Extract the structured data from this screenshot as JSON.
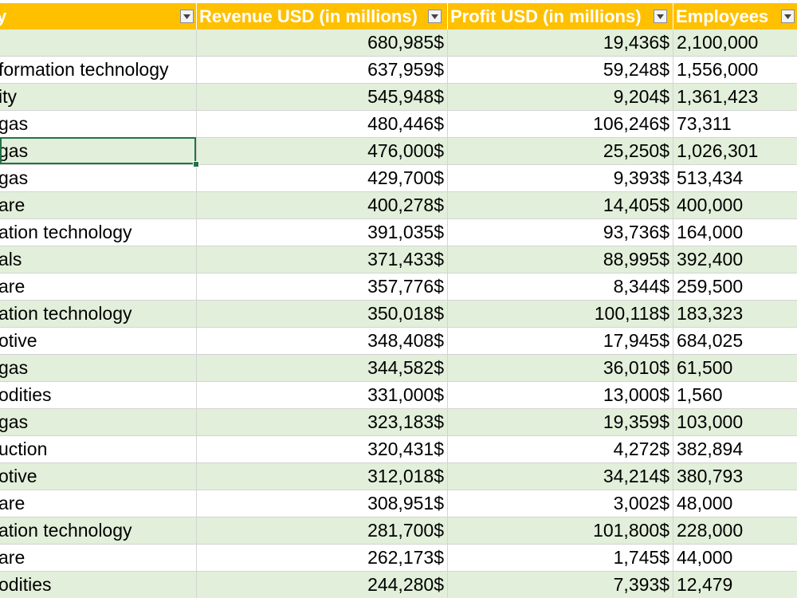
{
  "header": {
    "industry": "y",
    "revenue": "Revenue USD (in millions)",
    "profit": "Profit USD (in millions)",
    "employees": "Employees"
  },
  "rows": [
    {
      "industry": "",
      "revenue": "680,985$",
      "profit": "19,436$",
      "employees": "2,100,000"
    },
    {
      "industry": "formation technology",
      "revenue": "637,959$",
      "profit": "59,248$",
      "employees": "1,556,000"
    },
    {
      "industry": "ity",
      "revenue": "545,948$",
      "profit": "9,204$",
      "employees": "1,361,423"
    },
    {
      "industry": "gas",
      "revenue": "480,446$",
      "profit": "106,246$",
      "employees": "73,311"
    },
    {
      "industry": "gas",
      "revenue": "476,000$",
      "profit": "25,250$",
      "employees": "1,026,301"
    },
    {
      "industry": "gas",
      "revenue": "429,700$",
      "profit": "9,393$",
      "employees": "513,434"
    },
    {
      "industry": "are",
      "revenue": "400,278$",
      "profit": "14,405$",
      "employees": "400,000"
    },
    {
      "industry": "ation technology",
      "revenue": "391,035$",
      "profit": "93,736$",
      "employees": "164,000"
    },
    {
      "industry": "als",
      "revenue": "371,433$",
      "profit": "88,995$",
      "employees": "392,400"
    },
    {
      "industry": "are",
      "revenue": "357,776$",
      "profit": "8,344$",
      "employees": "259,500"
    },
    {
      "industry": "ation technology",
      "revenue": "350,018$",
      "profit": "100,118$",
      "employees": "183,323"
    },
    {
      "industry": "otive",
      "revenue": "348,408$",
      "profit": "17,945$",
      "employees": "684,025"
    },
    {
      "industry": "gas",
      "revenue": "344,582$",
      "profit": "36,010$",
      "employees": "61,500"
    },
    {
      "industry": "odities",
      "revenue": "331,000$",
      "profit": "13,000$",
      "employees": "1,560"
    },
    {
      "industry": "gas",
      "revenue": "323,183$",
      "profit": "19,359$",
      "employees": "103,000"
    },
    {
      "industry": "uction",
      "revenue": "320,431$",
      "profit": "4,272$",
      "employees": "382,894"
    },
    {
      "industry": "otive",
      "revenue": "312,018$",
      "profit": "34,214$",
      "employees": "380,793"
    },
    {
      "industry": "are",
      "revenue": "308,951$",
      "profit": "3,002$",
      "employees": "48,000"
    },
    {
      "industry": "ation technology",
      "revenue": "281,700$",
      "profit": "101,800$",
      "employees": "228,000"
    },
    {
      "industry": "are",
      "revenue": "262,173$",
      "profit": "1,745$",
      "employees": "44,000"
    },
    {
      "industry": "odities",
      "revenue": "244,280$",
      "profit": "7,393$",
      "employees": "12,479"
    }
  ],
  "colors": {
    "header_bg": "#ffc000",
    "header_text": "#ffffff",
    "band_row": "#e2efda",
    "plain_row": "#ffffff",
    "selection": "#217346"
  },
  "icons": {
    "filter": "filter-dropdown-icon"
  }
}
